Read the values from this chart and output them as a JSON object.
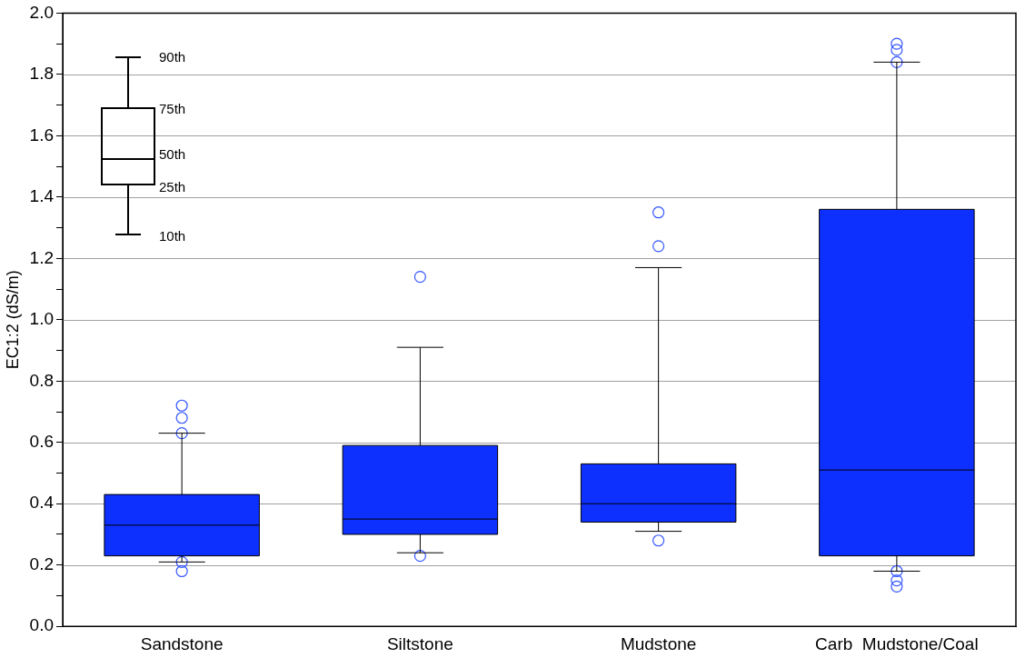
{
  "chart_data": {
    "type": "box",
    "ylabel": "EC1:2 (dS/m)",
    "categories": [
      "Sandstone",
      "Siltstone",
      "Mudstone",
      "Carb  Mudstone/Coal"
    ],
    "series": [
      {
        "color": "#0d30ff",
        "boxes": [
          {
            "low": 0.21,
            "q1": 0.23,
            "median": 0.33,
            "q3": 0.43,
            "high": 0.63,
            "outliers": [
              0.72,
              0.68,
              0.63,
              0.21,
              0.18
            ]
          },
          {
            "low": 0.24,
            "q1": 0.3,
            "median": 0.35,
            "q3": 0.59,
            "high": 0.91,
            "outliers": [
              1.14,
              0.23
            ]
          },
          {
            "low": 0.31,
            "q1": 0.34,
            "median": 0.4,
            "q3": 0.53,
            "high": 1.17,
            "outliers": [
              1.35,
              1.24,
              0.28
            ]
          },
          {
            "low": 0.18,
            "q1": 0.23,
            "median": 0.51,
            "q3": 1.36,
            "high": 1.84,
            "outliers": [
              1.9,
              1.88,
              1.84,
              0.18,
              0.15,
              0.13
            ]
          }
        ]
      }
    ],
    "ylim": [
      0,
      2
    ],
    "yticks": [
      {
        "value": 0,
        "label": "0.0"
      },
      {
        "value": 0.1,
        "label": null
      },
      0.2,
      {
        "value": 0.3,
        "label": null
      },
      0.4,
      {
        "value": 0.5,
        "label": null
      },
      0.6,
      {
        "value": 0.7,
        "label": null
      },
      0.8,
      {
        "value": 0.9,
        "label": null
      },
      {
        "value": 1,
        "label": "1.0"
      },
      {
        "value": 1.1,
        "label": null
      },
      1.2,
      {
        "value": 1.3,
        "label": null
      },
      1.4,
      {
        "value": 1.5,
        "label": null
      },
      1.6,
      {
        "value": 1.7,
        "label": null
      },
      1.8,
      {
        "value": 1.9,
        "label": null
      },
      {
        "value": 2,
        "label": "2.0"
      }
    ],
    "grid": "y",
    "legend": false,
    "marker": "circle",
    "annotations": [
      "90th",
      "75th",
      "50th",
      "25th",
      "10th"
    ]
  }
}
